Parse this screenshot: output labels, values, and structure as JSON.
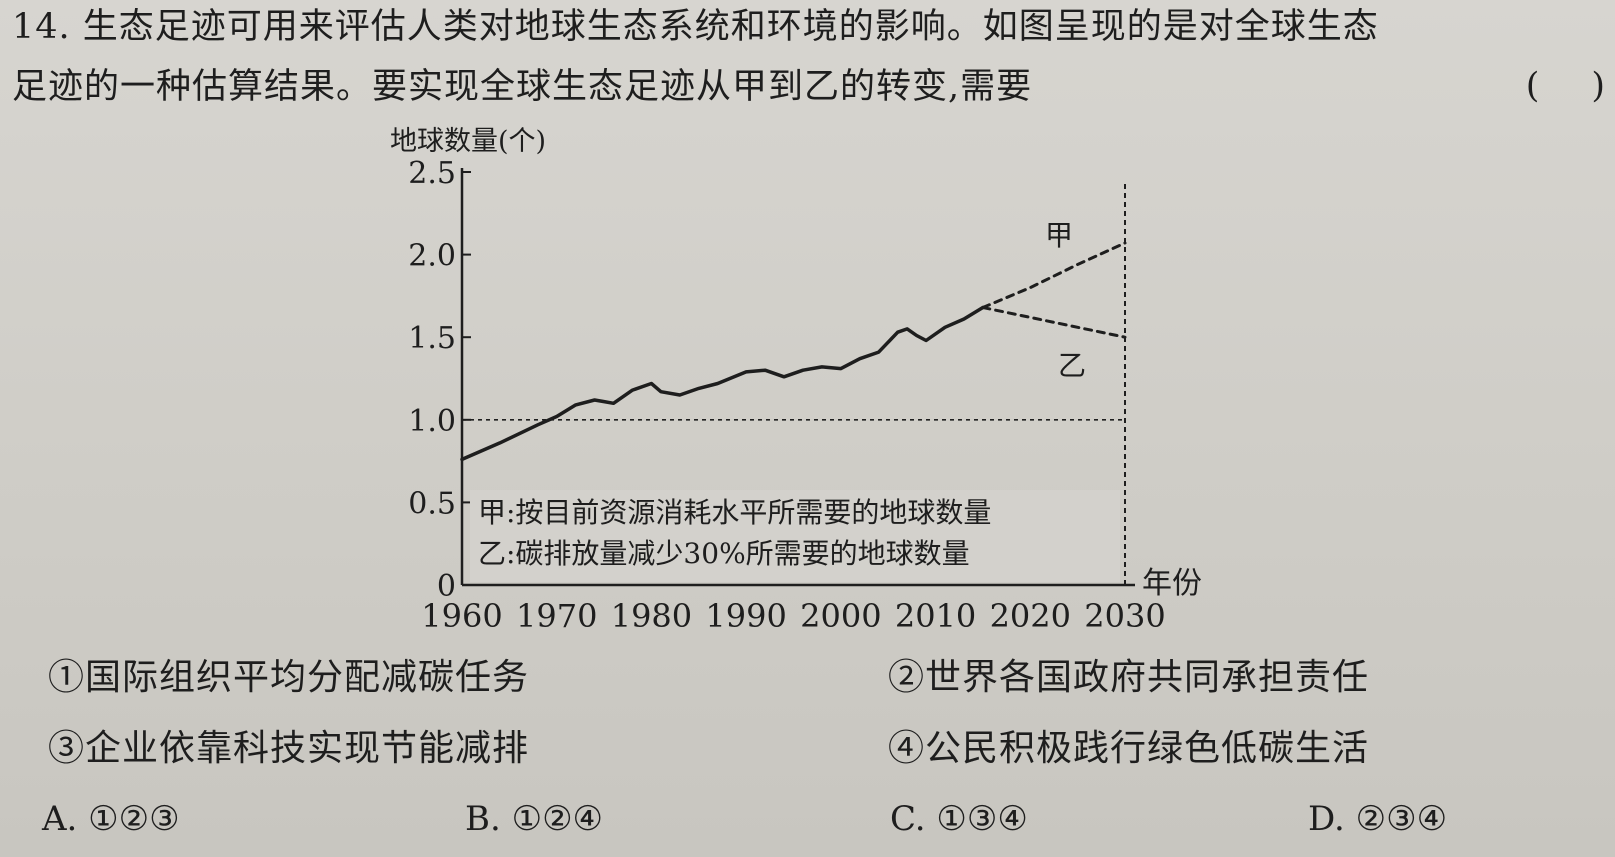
{
  "question": {
    "line1": "14. 生态足迹可用来评估人类对地球生态系统和环境的影响。如图呈现的是对全球生态",
    "line2": "足迹的一种估算结果。要实现全球生态足迹从甲到乙的转变,需要",
    "paren_open": "(",
    "paren_close": ")"
  },
  "chart_data": {
    "type": "line",
    "ylabel": "地球数量(个)",
    "xlabel": "年份",
    "x_ticks": [
      "1960",
      "1970",
      "1980",
      "1990",
      "2000",
      "2010",
      "2020",
      "2030"
    ],
    "y_ticks": [
      "0",
      "0.5",
      "1.0",
      "1.5",
      "2.0",
      "2.5"
    ],
    "xlim": [
      1960,
      2030
    ],
    "ylim": [
      0,
      2.5
    ],
    "reference_line": {
      "y": 1.0,
      "style": "dashed"
    },
    "series": [
      {
        "name": "甲",
        "style": "dashed",
        "x": [
          2015,
          2020,
          2025,
          2030
        ],
        "y": [
          1.68,
          1.8,
          1.94,
          2.07
        ]
      },
      {
        "name": "乙",
        "style": "dashed",
        "x": [
          2015,
          2020,
          2025,
          2030
        ],
        "y": [
          1.68,
          1.62,
          1.56,
          1.5
        ]
      },
      {
        "name": "",
        "style": "solid",
        "x": [
          1960,
          1964,
          1968,
          1970,
          1972,
          1974,
          1975,
          1976,
          1978,
          1980,
          1981,
          1983,
          1985,
          1987,
          1990,
          1992,
          1994,
          1996,
          1998,
          2000,
          2002,
          2004,
          2006,
          2007,
          2008,
          2009,
          2011,
          2013,
          2015
        ],
        "y": [
          0.76,
          0.86,
          0.97,
          1.02,
          1.09,
          1.12,
          1.11,
          1.1,
          1.18,
          1.22,
          1.17,
          1.15,
          1.19,
          1.22,
          1.29,
          1.3,
          1.26,
          1.3,
          1.32,
          1.31,
          1.37,
          1.41,
          1.53,
          1.55,
          1.51,
          1.48,
          1.56,
          1.61,
          1.68
        ]
      }
    ],
    "legend": {
      "line1": "甲:按目前资源消耗水平所需要的地球数量",
      "line2": "乙:碳排放量减少30%所需要的地球数量"
    }
  },
  "options": {
    "o1": "①国际组织平均分配减碳任务",
    "o2": "②世界各国政府共同承担责任",
    "o3": "③企业依靠科技实现节能减排",
    "o4": "④公民积极践行绿色低碳生活"
  },
  "choices": {
    "A": "A. ①②③",
    "B": "B. ①②④",
    "C": "C. ①③④",
    "D": "D. ②③④"
  }
}
